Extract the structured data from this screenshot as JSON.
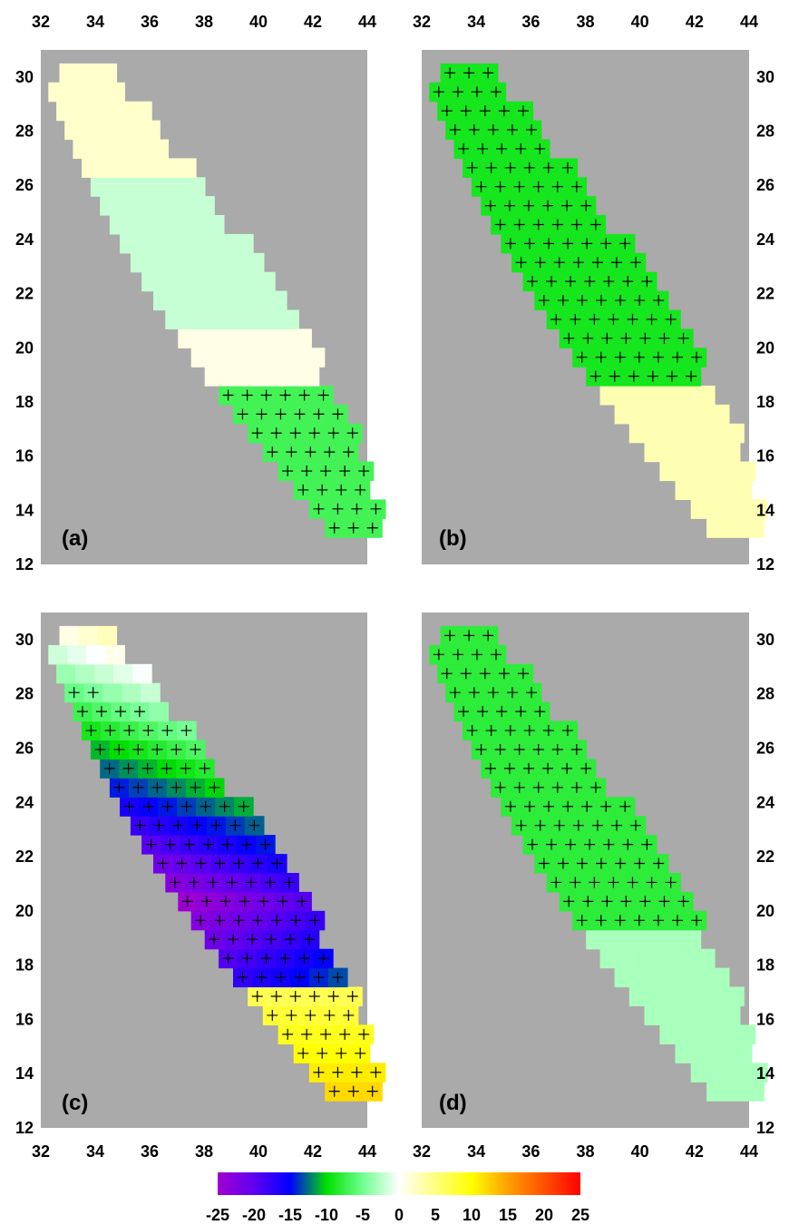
{
  "panels": [
    {
      "id": "a",
      "label": "(a)"
    },
    {
      "id": "b",
      "label": "(b)"
    },
    {
      "id": "c",
      "label": "(c)"
    },
    {
      "id": "d",
      "label": "(d)"
    }
  ],
  "axes": {
    "x_ticks": [
      "32",
      "34",
      "36",
      "38",
      "40",
      "42",
      "44"
    ],
    "y_ticks": [
      "12",
      "14",
      "16",
      "18",
      "20",
      "22",
      "24",
      "26",
      "28",
      "30"
    ],
    "x_range": [
      32,
      44
    ],
    "y_range": [
      12,
      31
    ]
  },
  "colorbar": {
    "tick_labels": [
      "-25",
      "-20",
      "-15",
      "-10",
      "-5",
      "0",
      "5",
      "10",
      "15",
      "20",
      "25"
    ],
    "range": [
      -25,
      25
    ],
    "stops": [
      {
        "value": -25,
        "color": "#a000d0"
      },
      {
        "value": -20,
        "color": "#6000f0"
      },
      {
        "value": -15,
        "color": "#0000ff"
      },
      {
        "value": -10,
        "color": "#00e000"
      },
      {
        "value": -5,
        "color": "#70ff90"
      },
      {
        "value": 0,
        "color": "#ffffff"
      },
      {
        "value": 5,
        "color": "#ffff80"
      },
      {
        "value": 10,
        "color": "#ffff00"
      },
      {
        "value": 15,
        "color": "#ffa000"
      },
      {
        "value": 20,
        "color": "#ff5000"
      },
      {
        "value": 25,
        "color": "#ff0000"
      }
    ]
  },
  "colors": {
    "background": "#aaaaaa",
    "significance_marker": "#000000"
  }
}
